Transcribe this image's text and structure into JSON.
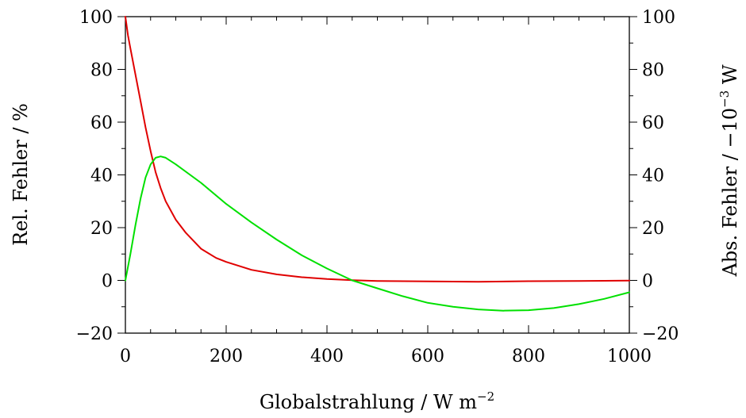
{
  "chart_data": {
    "type": "line",
    "title": "",
    "xlabel": "Globalstrahlung / W m",
    "xlabel_sup": "−2",
    "ylabel_left": "Rel. Fehler / %",
    "ylabel_right": "Abs. Fehler / −10",
    "ylabel_right_sup": "−3",
    "ylabel_right_unit": " W",
    "xlim": [
      0,
      1000
    ],
    "ylim_left": [
      -20,
      100
    ],
    "ylim_right": [
      -20,
      100
    ],
    "x_ticks": [
      0,
      200,
      400,
      600,
      800,
      1000
    ],
    "y_ticks_left": [
      -20,
      0,
      20,
      40,
      60,
      80,
      100
    ],
    "y_ticks_right": [
      -20,
      0,
      20,
      40,
      60,
      80,
      100
    ],
    "x_tick_labels": [
      "0",
      "200",
      "400",
      "600",
      "800",
      "1000"
    ],
    "y_tick_labels": [
      "−20",
      "0",
      "20",
      "40",
      "60",
      "80",
      "100"
    ],
    "grid": false,
    "legend": "none",
    "series": [
      {
        "axis": "left",
        "color": "#e00000",
        "x": [
          0,
          5,
          10,
          20,
          30,
          40,
          50,
          60,
          70,
          80,
          100,
          120,
          150,
          180,
          200,
          250,
          300,
          350,
          400,
          450,
          500,
          600,
          700,
          800,
          900,
          1000
        ],
        "y": [
          100,
          93,
          88,
          78,
          68,
          58,
          49,
          41,
          35,
          30,
          23,
          18,
          12,
          8.5,
          7,
          4,
          2.3,
          1.2,
          0.5,
          0.1,
          -0.2,
          -0.4,
          -0.5,
          -0.3,
          -0.2,
          -0.1
        ]
      },
      {
        "axis": "right",
        "color": "#00e000",
        "x": [
          0,
          10,
          20,
          30,
          40,
          50,
          60,
          70,
          80,
          100,
          150,
          200,
          250,
          300,
          350,
          400,
          450,
          500,
          550,
          600,
          650,
          700,
          750,
          800,
          850,
          900,
          950,
          1000
        ],
        "y": [
          0,
          10,
          21,
          31,
          39,
          44,
          46.5,
          47,
          46.5,
          44,
          37,
          29,
          22,
          15.5,
          9.5,
          4.5,
          0,
          -3,
          -6,
          -8.5,
          -10,
          -11,
          -11.5,
          -11.3,
          -10.5,
          -9,
          -7,
          -4.5
        ]
      }
    ]
  }
}
